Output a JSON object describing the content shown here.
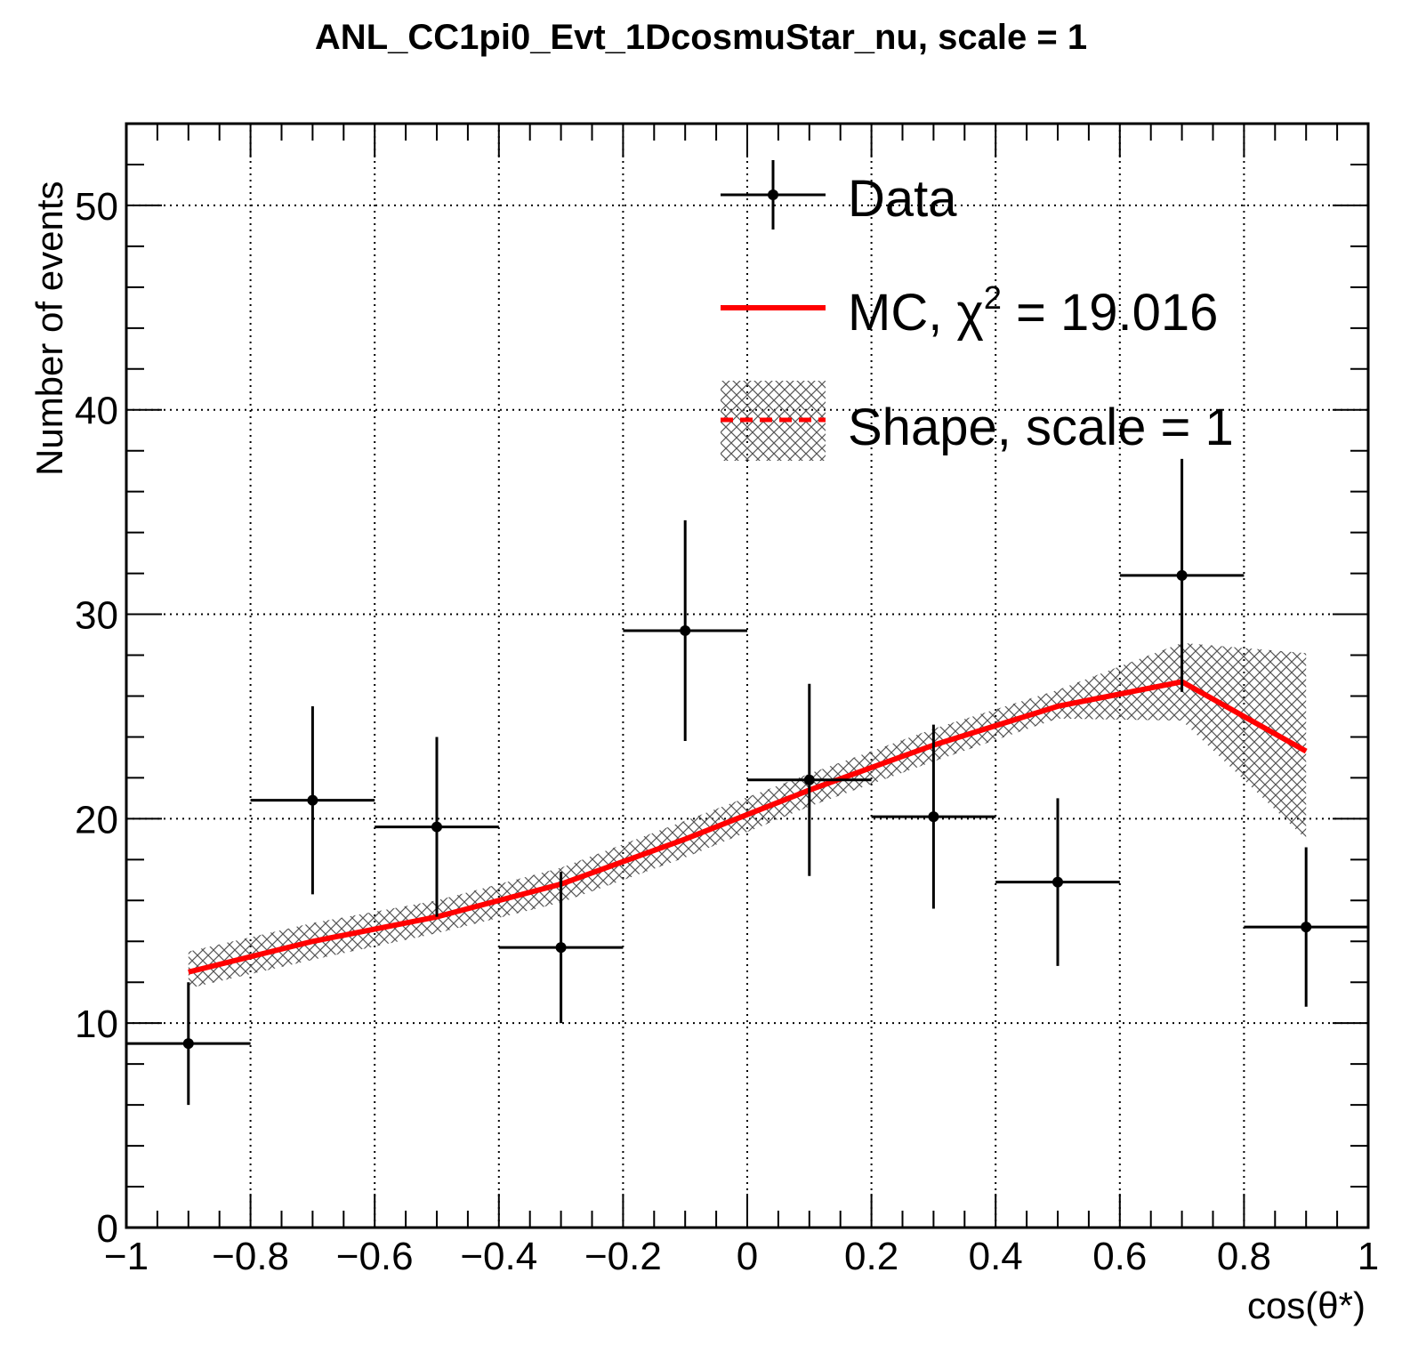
{
  "chart_data": {
    "type": "line",
    "title": "ANL_CC1pi0_Evt_1DcosmuStar_nu, scale = 1",
    "xlabel": "cos(θ*)",
    "ylabel": "Number of events",
    "xlim": [
      -1,
      1
    ],
    "ylim": [
      0,
      54
    ],
    "grid": true,
    "legend_position": "top-right",
    "x_ticks": [
      "−1",
      "−0.8",
      "−0.6",
      "−0.4",
      "−0.2",
      "0",
      "0.2",
      "0.4",
      "0.6",
      "0.8",
      "1"
    ],
    "x_tick_values": [
      -1,
      -0.8,
      -0.6,
      -0.4,
      -0.2,
      0,
      0.2,
      0.4,
      0.6,
      0.8,
      1
    ],
    "y_ticks": [
      "0",
      "10",
      "20",
      "30",
      "40",
      "50"
    ],
    "y_tick_values": [
      0,
      10,
      20,
      30,
      40,
      50
    ],
    "bin_width": 0.2,
    "series": [
      {
        "name": "Data",
        "kind": "points_with_errors",
        "color": "#000000",
        "x": [
          -0.9,
          -0.7,
          -0.5,
          -0.3,
          -0.1,
          0.1,
          0.3,
          0.5,
          0.7,
          0.9
        ],
        "y": [
          9.0,
          20.9,
          19.6,
          13.7,
          29.2,
          21.9,
          20.1,
          16.9,
          31.9,
          14.7
        ],
        "yerr": [
          3.0,
          4.6,
          4.4,
          3.7,
          5.4,
          4.7,
          4.5,
          4.1,
          5.7,
          3.9
        ]
      },
      {
        "name": "MC, χ² = 19.016",
        "name_parts": {
          "prefix": "MC, χ",
          "sup": "2",
          "suffix": " = 19.016"
        },
        "kind": "line",
        "color": "#ff0000",
        "x": [
          -0.9,
          -0.7,
          -0.5,
          -0.3,
          -0.1,
          0.1,
          0.3,
          0.5,
          0.7,
          0.9
        ],
        "y": [
          12.5,
          14.0,
          15.2,
          16.8,
          19.0,
          21.4,
          23.6,
          25.5,
          26.7,
          23.3
        ]
      },
      {
        "name": "Shape, scale = 1",
        "kind": "band",
        "color": "#ff0000",
        "x": [
          -0.9,
          -0.7,
          -0.5,
          -0.3,
          -0.1,
          0.1,
          0.3,
          0.5,
          0.7,
          0.9
        ],
        "y": [
          12.5,
          14.0,
          15.2,
          16.8,
          19.0,
          21.4,
          23.6,
          25.5,
          26.7,
          23.3
        ],
        "ylow": [
          11.7,
          13.1,
          14.4,
          15.9,
          18.1,
          20.6,
          22.8,
          24.9,
          24.8,
          19.0
        ],
        "yhigh": [
          13.5,
          14.9,
          16.0,
          17.6,
          19.9,
          22.2,
          24.4,
          26.3,
          28.6,
          28.1
        ]
      }
    ]
  }
}
